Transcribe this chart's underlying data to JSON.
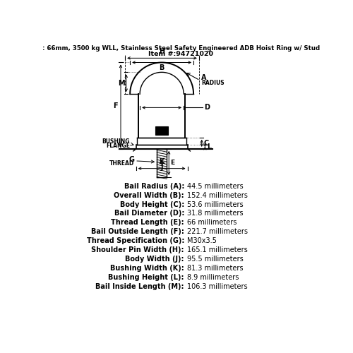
{
  "title_line1": ": 66mm, 3500 kg WLL, Stainless Steel Safety Engineered ADB Hoist Ring w/ Stud",
  "title_line2": "Item #:94721020",
  "specs": [
    [
      "Bail Radius (A):",
      "44.5 millimeters"
    ],
    [
      "Overall Width (B):",
      "152.4 millimeters"
    ],
    [
      "Body Height (C):",
      "53.6 millimeters"
    ],
    [
      "Bail Diameter (D):",
      "31.8 millimeters"
    ],
    [
      "Thread Length (E):",
      "66 millimeters"
    ],
    [
      "Bail Outside Length (F):",
      "221.7 millimeters"
    ],
    [
      "Thread Specification (G):",
      "M30x3.5"
    ],
    [
      "Shoulder Pin Width (H):",
      "165.1 millimeters"
    ],
    [
      "Body Width (J):",
      "95.5 millimeters"
    ],
    [
      "Bushing Width (K):",
      "81.3 millimeters"
    ],
    [
      "Bushing Height (L):",
      "8.9 millimeters"
    ],
    [
      "Bail Inside Length (M):",
      "106.3 millimeters"
    ]
  ],
  "bg_color": "#ffffff",
  "line_color": "#000000",
  "text_color": "#000000"
}
